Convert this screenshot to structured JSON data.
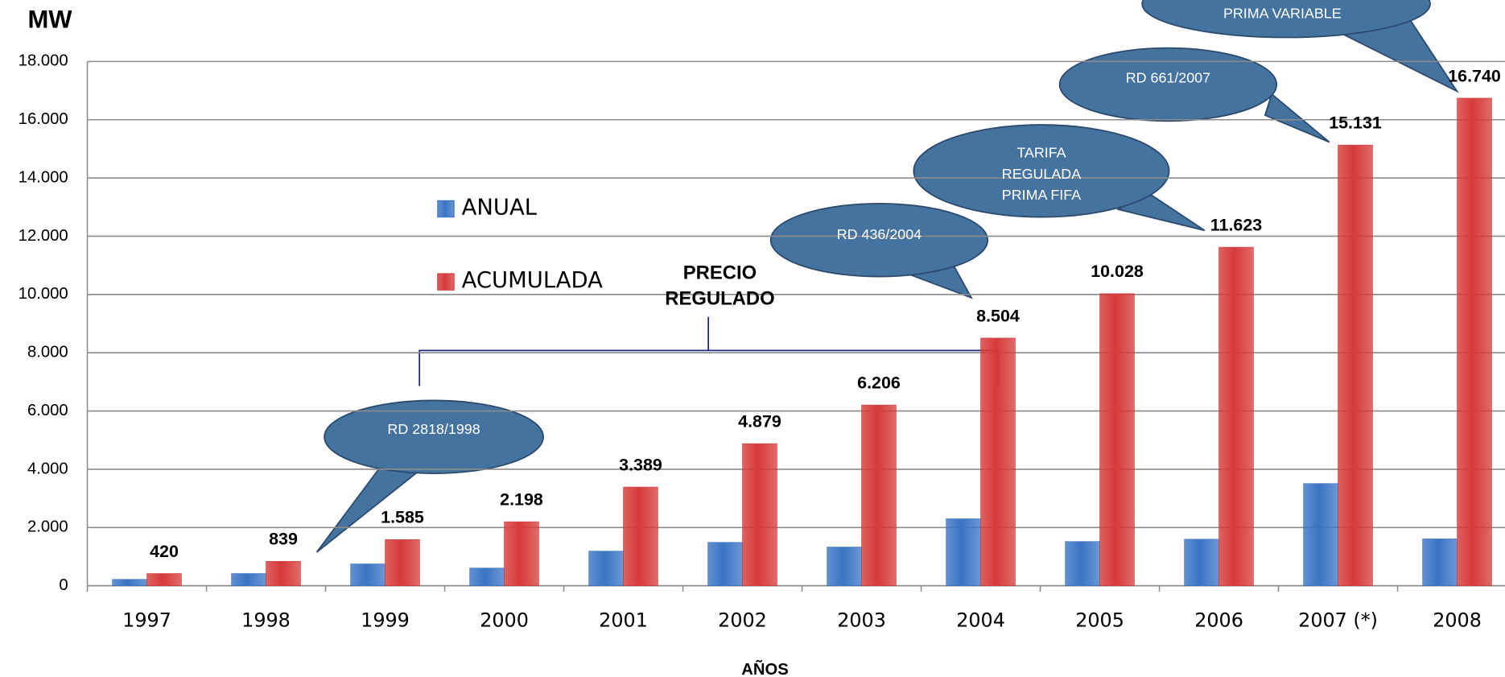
{
  "chart_data": {
    "type": "bar",
    "y_label": "MW",
    "x_label": "AÑOS",
    "categories": [
      "1997",
      "1998",
      "1999",
      "2000",
      "2001",
      "2002",
      "2003",
      "2004",
      "2005",
      "2006",
      "2007 (*)",
      "2008"
    ],
    "series": [
      {
        "name": "ANUAL",
        "color": "#3a74c4",
        "values": [
          220,
          420,
          750,
          610,
          1190,
          1490,
          1330,
          2300,
          1520,
          1600,
          3510,
          1610
        ]
      },
      {
        "name": "ACUMULADA",
        "color": "#d63a3a",
        "values": [
          420,
          839,
          1585,
          2198,
          3389,
          4879,
          6206,
          8504,
          10028,
          11623,
          15131,
          16740
        ],
        "value_labels": [
          "420",
          "839",
          "1.585",
          "2.198",
          "3.389",
          "4.879",
          "6.206",
          "8.504",
          "10.028",
          "11.623",
          "15.131",
          "16.740"
        ]
      }
    ],
    "ylim": [
      0,
      18000
    ],
    "yticks": [
      0,
      {
        "value": 2000,
        "label": "2.000"
      },
      {
        "value": 4000,
        "label": "4.000"
      },
      {
        "value": 6000,
        "label": "6.000"
      },
      {
        "value": 8000,
        "label": "8.000"
      },
      {
        "value": 10000,
        "label": "10.000"
      },
      {
        "value": 12000,
        "label": "12.000"
      },
      {
        "value": 14000,
        "label": "14.000"
      },
      {
        "value": 16000,
        "label": "16.000"
      },
      {
        "value": 18000,
        "label": "18.000"
      }
    ],
    "grid": true,
    "annotations": [
      {
        "lines": [
          "RD 2818/1998"
        ]
      },
      {
        "lines": [
          "RD 436/2004"
        ]
      },
      {
        "lines": [
          "TARIFA",
          "REGULADA",
          "PRIMA FIFA"
        ]
      },
      {
        "lines": [
          "RD 661/2007"
        ]
      },
      {
        "lines": [
          "PRIMA VARIABLE"
        ]
      },
      {
        "lines": [
          "PRECIO",
          "REGULADO"
        ]
      }
    ]
  }
}
